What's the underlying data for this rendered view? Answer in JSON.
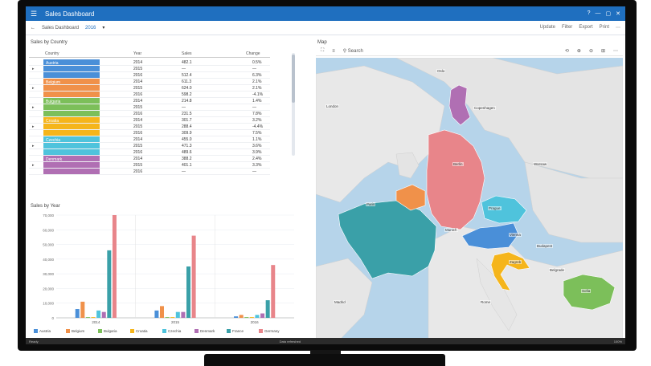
{
  "app": {
    "title": "Sales Dashboard",
    "title_right": [
      "?",
      "—",
      "▢",
      "✕"
    ]
  },
  "toolbar": {
    "crumb": "Sales Dashboard",
    "selection": "2016",
    "tools": [
      "Update",
      "Filter",
      "Export",
      "Print",
      "⋯"
    ]
  },
  "table_title": "Sales by Country",
  "table": {
    "headers": [
      "Country",
      "Year",
      "Sales",
      "Change"
    ],
    "groups": [
      {
        "label": "Austria",
        "color": "#4a8fd8",
        "rows": [
          [
            "2014",
            "482.1",
            "0.5%"
          ],
          [
            "2015",
            "—",
            "—"
          ],
          [
            "2016",
            "512.4",
            "6.3%"
          ]
        ]
      },
      {
        "label": "Belgium",
        "color": "#f0914a",
        "rows": [
          [
            "2014",
            "611.3",
            "2.1%"
          ],
          [
            "2015",
            "624.0",
            "2.1%"
          ],
          [
            "2016",
            "598.2",
            "-4.1%"
          ]
        ]
      },
      {
        "label": "Bulgaria",
        "color": "#7cbf5a",
        "rows": [
          [
            "2014",
            "214.8",
            "1.4%"
          ],
          [
            "2015",
            "—",
            "—"
          ],
          [
            "2016",
            "231.5",
            "7.8%"
          ]
        ]
      },
      {
        "label": "Croatia",
        "color": "#f5b51b",
        "rows": [
          [
            "2014",
            "301.7",
            "3.2%"
          ],
          [
            "2015",
            "288.4",
            "-4.4%"
          ],
          [
            "2016",
            "309.9",
            "7.5%"
          ]
        ]
      },
      {
        "label": "Czechia",
        "color": "#4fc3dc",
        "rows": [
          [
            "2014",
            "455.0",
            "1.1%"
          ],
          [
            "2015",
            "471.3",
            "3.6%"
          ],
          [
            "2016",
            "489.6",
            "3.9%"
          ]
        ]
      },
      {
        "label": "Denmark",
        "color": "#b06fb3",
        "rows": [
          [
            "2014",
            "388.2",
            "2.4%"
          ],
          [
            "2015",
            "401.1",
            "3.3%"
          ],
          [
            "2016",
            "—",
            "—"
          ]
        ]
      }
    ]
  },
  "chart_title": "Sales by Year",
  "chart_data": {
    "type": "bar",
    "categories": [
      "2014",
      "2015",
      "2016"
    ],
    "ylim": [
      0,
      70000
    ],
    "yticks": [
      "0",
      "10,000",
      "20,000",
      "30,000",
      "40,000",
      "50,000",
      "60,000",
      "70,000"
    ],
    "series": [
      {
        "name": "Austria",
        "color": "#4a8fd8",
        "values": [
          6000,
          5000,
          1000
        ]
      },
      {
        "name": "Belgium",
        "color": "#f0914a",
        "values": [
          11000,
          8000,
          2000
        ]
      },
      {
        "name": "Bulgaria",
        "color": "#7cbf5a",
        "values": [
          500,
          500,
          500
        ]
      },
      {
        "name": "Croatia",
        "color": "#f5b51b",
        "values": [
          500,
          500,
          500
        ]
      },
      {
        "name": "Czechia",
        "color": "#4fc3dc",
        "values": [
          5000,
          4000,
          2000
        ]
      },
      {
        "name": "Denmark",
        "color": "#b06fb3",
        "values": [
          4000,
          4000,
          3000
        ]
      },
      {
        "name": "France",
        "color": "#3aa0a8",
        "values": [
          46000,
          35000,
          12000
        ]
      },
      {
        "name": "Germany",
        "color": "#e8858a",
        "values": [
          70000,
          56000,
          36000
        ]
      }
    ]
  },
  "map": {
    "title": "Map",
    "tools": [
      "⛶",
      "≡",
      "⚲ Search",
      "⟲",
      "⊕",
      "⊖",
      "⊞",
      "⋯"
    ],
    "cities": [
      "London",
      "Paris",
      "Berlin",
      "Warsaw",
      "Prague",
      "Vienna",
      "Munich",
      "Zagreb",
      "Rome",
      "Madrid",
      "Copenhagen",
      "Sofia",
      "Budapest",
      "Belgrade",
      "Oslo"
    ]
  },
  "statusbar": {
    "left": "Ready",
    "mid": "Data refreshed",
    "right": "100%"
  }
}
